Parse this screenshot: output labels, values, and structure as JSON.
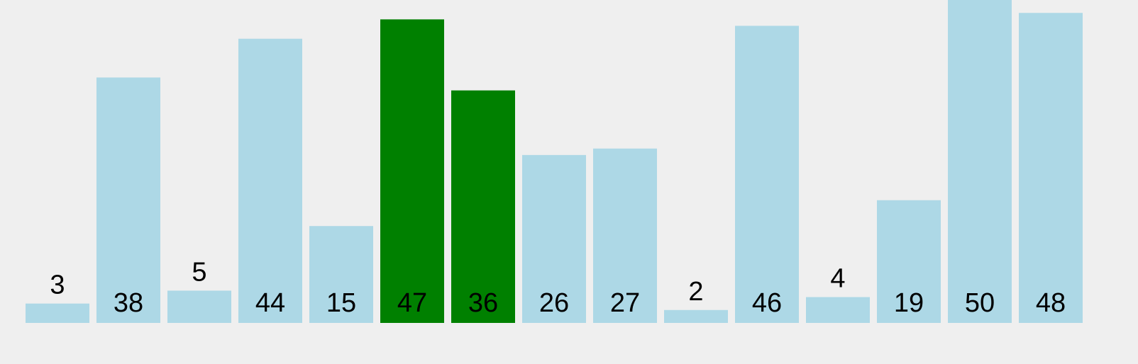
{
  "chart_data": {
    "type": "bar",
    "categories": [
      "",
      "",
      "",
      "",
      "",
      "",
      "",
      "",
      "",
      "",
      "",
      "",
      "",
      "",
      ""
    ],
    "values": [
      3,
      38,
      5,
      44,
      15,
      47,
      36,
      26,
      27,
      2,
      46,
      4,
      19,
      50,
      48
    ],
    "highlighted_indices": [
      5,
      6
    ],
    "ylim": [
      0,
      50
    ],
    "grid": false,
    "colors": {
      "bar": "#add8e6",
      "highlight": "#008000",
      "text": "#000000",
      "background": "#efefef"
    }
  }
}
